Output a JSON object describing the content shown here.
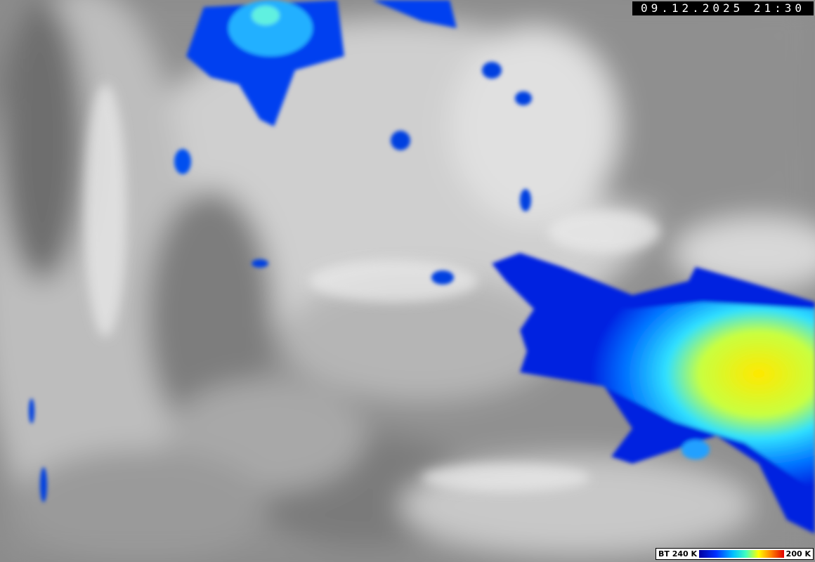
{
  "timestamp": "09.12.2025 21:30",
  "legend": {
    "min_label": "BT 240 K",
    "max_label": "200 K"
  }
}
